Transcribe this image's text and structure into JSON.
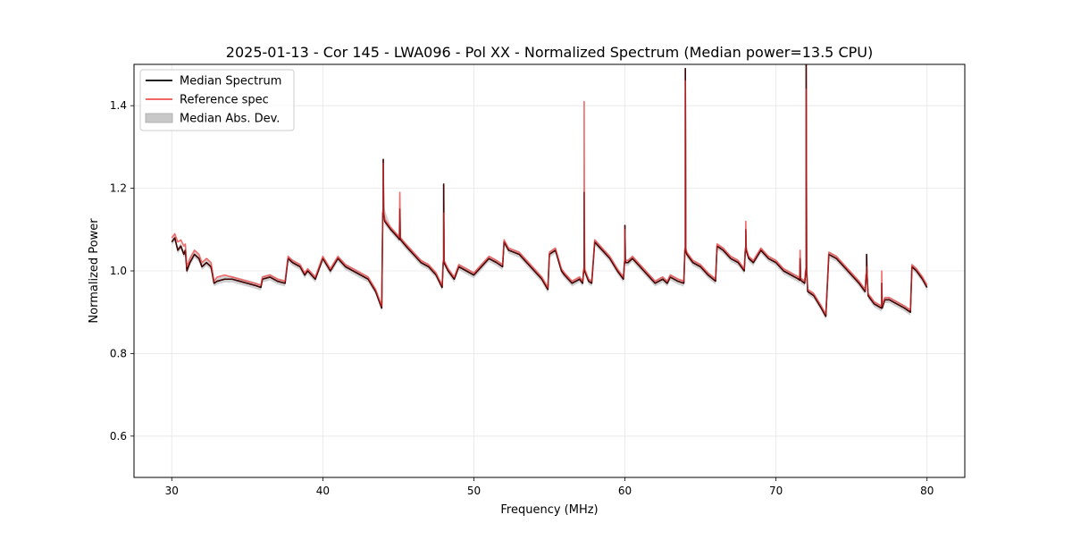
{
  "chart_data": {
    "type": "line",
    "title": "2025-01-13 - Cor 145 - LWA096 - Pol XX - Normalized Spectrum (Median power=13.5 CPU)",
    "xlabel": "Frequency (MHz)",
    "ylabel": "Normalized Power",
    "xlim": [
      27.5,
      82.5
    ],
    "ylim": [
      0.5,
      1.5
    ],
    "x_ticks": [
      30,
      40,
      50,
      60,
      70,
      80
    ],
    "y_ticks": [
      0.6,
      0.8,
      1.0,
      1.2,
      1.4
    ],
    "x_tick_labels": [
      "30",
      "40",
      "50",
      "60",
      "70",
      "80"
    ],
    "y_tick_labels": [
      "0.6",
      "0.8",
      "1.0",
      "1.2",
      "1.4"
    ],
    "grid": true,
    "legend_position": "upper-left",
    "legend": [
      {
        "label": "Median Spectrum",
        "kind": "line",
        "color": "#000000"
      },
      {
        "label": "Reference spec",
        "kind": "line",
        "color": "#f05050"
      },
      {
        "label": "Median Abs. Dev.",
        "kind": "patch",
        "color": "#c8c8c8"
      }
    ],
    "series": [
      {
        "name": "Median Spectrum",
        "color": "#000000",
        "x": [
          30.0,
          30.2,
          30.4,
          30.6,
          30.8,
          30.9,
          31.0,
          31.2,
          31.5,
          31.8,
          32.0,
          32.3,
          32.6,
          32.8,
          33.0,
          33.5,
          34.0,
          34.5,
          35.0,
          35.5,
          35.9,
          36.0,
          36.5,
          37.0,
          37.5,
          37.7,
          38.0,
          38.5,
          38.8,
          39.0,
          39.5,
          40.0,
          40.5,
          41.0,
          41.5,
          42.0,
          42.5,
          43.0,
          43.5,
          43.9,
          44.0,
          44.1,
          44.5,
          45.0,
          45.5,
          46.0,
          46.5,
          47.0,
          47.5,
          47.9,
          48.0,
          48.3,
          48.7,
          49.0,
          49.5,
          50.0,
          50.5,
          51.0,
          51.5,
          51.9,
          52.0,
          52.3,
          53.0,
          53.5,
          54.0,
          54.5,
          54.9,
          55.0,
          55.4,
          55.8,
          56.0,
          56.5,
          57.0,
          57.2,
          57.3,
          57.6,
          57.8,
          58.0,
          58.5,
          59.0,
          59.5,
          59.9,
          60.0,
          60.2,
          60.5,
          61.0,
          61.5,
          62.0,
          62.5,
          62.8,
          63.0,
          63.5,
          63.9,
          64.0,
          64.1,
          64.5,
          65.0,
          65.5,
          66.0,
          66.1,
          66.5,
          67.0,
          67.5,
          67.9,
          68.0,
          68.2,
          68.5,
          69.0,
          69.5,
          70.0,
          70.5,
          71.0,
          71.5,
          71.9,
          72.0,
          72.1,
          72.5,
          73.0,
          73.3,
          73.5,
          74.0,
          74.5,
          75.0,
          75.5,
          75.9,
          76.0,
          76.1,
          76.5,
          77.0,
          77.2,
          77.5,
          78.0,
          78.5,
          78.9,
          79.0,
          79.3,
          79.7,
          80.0
        ],
        "y": [
          1.07,
          1.08,
          1.05,
          1.06,
          1.04,
          1.05,
          1.0,
          1.02,
          1.04,
          1.03,
          1.01,
          1.02,
          1.01,
          0.97,
          0.975,
          0.98,
          0.98,
          0.975,
          0.97,
          0.965,
          0.96,
          0.98,
          0.985,
          0.975,
          0.97,
          1.03,
          1.02,
          1.01,
          0.99,
          1.0,
          0.98,
          1.03,
          1.0,
          1.03,
          1.01,
          1.0,
          0.99,
          0.98,
          0.95,
          0.91,
          1.14,
          1.12,
          1.1,
          1.08,
          1.06,
          1.04,
          1.02,
          1.01,
          0.99,
          0.96,
          1.02,
          1.0,
          0.98,
          1.01,
          1.0,
          0.99,
          1.01,
          1.03,
          1.02,
          1.01,
          1.07,
          1.05,
          1.04,
          1.02,
          1.0,
          0.98,
          0.955,
          1.04,
          1.05,
          1.0,
          0.99,
          0.97,
          0.98,
          0.97,
          1.0,
          0.975,
          0.97,
          1.07,
          1.05,
          1.03,
          1.0,
          0.98,
          1.02,
          1.02,
          1.03,
          1.01,
          0.99,
          0.97,
          0.98,
          0.97,
          0.985,
          0.975,
          0.97,
          1.05,
          1.04,
          1.02,
          1.01,
          0.99,
          0.975,
          1.06,
          1.05,
          1.03,
          1.02,
          1.0,
          1.05,
          1.03,
          1.02,
          1.05,
          1.03,
          1.02,
          1.0,
          0.99,
          0.98,
          0.97,
          1.0,
          0.95,
          0.94,
          0.91,
          0.89,
          1.04,
          1.03,
          1.01,
          0.99,
          0.97,
          0.95,
          0.99,
          0.94,
          0.92,
          0.91,
          0.93,
          0.93,
          0.92,
          0.91,
          0.9,
          1.01,
          1.0,
          0.98,
          0.96
        ]
      },
      {
        "name": "Reference spec",
        "color": "#f05050",
        "x": [
          30.0,
          30.2,
          30.4,
          30.6,
          30.8,
          30.9,
          31.0,
          31.2,
          31.5,
          31.8,
          32.0,
          32.3,
          32.6,
          32.8,
          33.0,
          33.5,
          34.0,
          34.5,
          35.0,
          35.5,
          35.9,
          36.0,
          36.5,
          37.0,
          37.5,
          37.7,
          38.0,
          38.5,
          38.8,
          39.0,
          39.5,
          40.0,
          40.5,
          41.0,
          41.5,
          42.0,
          42.5,
          43.0,
          43.5,
          43.9,
          44.0,
          44.1,
          44.5,
          45.0,
          45.5,
          46.0,
          46.5,
          47.0,
          47.5,
          47.9,
          48.0,
          48.3,
          48.7,
          49.0,
          49.5,
          50.0,
          50.5,
          51.0,
          51.5,
          51.9,
          52.0,
          52.3,
          53.0,
          53.5,
          54.0,
          54.5,
          54.9,
          55.0,
          55.4,
          55.8,
          56.0,
          56.5,
          57.0,
          57.2,
          57.3,
          57.6,
          57.8,
          58.0,
          58.5,
          59.0,
          59.5,
          59.9,
          60.0,
          60.2,
          60.5,
          61.0,
          61.5,
          62.0,
          62.5,
          62.8,
          63.0,
          63.5,
          63.9,
          64.0,
          64.1,
          64.5,
          65.0,
          65.5,
          66.0,
          66.1,
          66.5,
          67.0,
          67.5,
          67.9,
          68.0,
          68.2,
          68.5,
          69.0,
          69.5,
          70.0,
          70.5,
          71.0,
          71.5,
          71.9,
          72.0,
          72.1,
          72.5,
          73.0,
          73.3,
          73.5,
          74.0,
          74.5,
          75.0,
          75.5,
          75.9,
          76.0,
          76.1,
          76.5,
          77.0,
          77.2,
          77.5,
          78.0,
          78.5,
          78.9,
          79.0,
          79.3,
          79.7,
          80.0
        ],
        "y": [
          1.08,
          1.09,
          1.07,
          1.075,
          1.06,
          1.065,
          1.01,
          1.03,
          1.05,
          1.04,
          1.02,
          1.03,
          1.02,
          0.975,
          0.985,
          0.99,
          0.985,
          0.98,
          0.975,
          0.97,
          0.965,
          0.985,
          0.99,
          0.98,
          0.975,
          1.035,
          1.025,
          1.015,
          0.995,
          1.005,
          0.985,
          1.035,
          1.005,
          1.035,
          1.015,
          1.005,
          0.995,
          0.985,
          0.955,
          0.915,
          1.145,
          1.125,
          1.105,
          1.085,
          1.065,
          1.045,
          1.025,
          1.015,
          0.995,
          0.965,
          1.025,
          1.005,
          0.985,
          1.015,
          1.005,
          0.995,
          1.015,
          1.035,
          1.025,
          1.015,
          1.075,
          1.055,
          1.045,
          1.025,
          1.005,
          0.985,
          0.96,
          1.045,
          1.055,
          1.005,
          0.995,
          0.975,
          0.985,
          0.975,
          1.005,
          0.98,
          0.975,
          1.075,
          1.055,
          1.035,
          1.005,
          0.985,
          1.025,
          1.025,
          1.035,
          1.015,
          0.995,
          0.975,
          0.985,
          0.975,
          0.99,
          0.98,
          0.975,
          1.055,
          1.045,
          1.025,
          1.015,
          0.995,
          0.98,
          1.065,
          1.055,
          1.035,
          1.025,
          1.005,
          1.055,
          1.035,
          1.025,
          1.055,
          1.035,
          1.025,
          1.005,
          0.995,
          0.985,
          0.975,
          1.005,
          0.955,
          0.945,
          0.915,
          0.895,
          1.045,
          1.035,
          1.015,
          0.995,
          0.975,
          0.955,
          0.995,
          0.945,
          0.925,
          0.915,
          0.935,
          0.935,
          0.925,
          0.915,
          0.905,
          1.015,
          1.005,
          0.985,
          0.965
        ]
      }
    ],
    "spikes": [
      {
        "x": 44.0,
        "median_peak": 1.27,
        "reference_peak": 1.26
      },
      {
        "x": 45.1,
        "median_peak": 1.15,
        "reference_peak": 1.19
      },
      {
        "x": 48.0,
        "median_peak": 1.21,
        "reference_peak": 1.14
      },
      {
        "x": 57.3,
        "median_peak": 1.19,
        "reference_peak": 1.41
      },
      {
        "x": 60.0,
        "median_peak": 1.11,
        "reference_peak": 1.1
      },
      {
        "x": 64.0,
        "median_peak": 1.49,
        "reference_peak": 1.46
      },
      {
        "x": 68.0,
        "median_peak": 1.1,
        "reference_peak": 1.12
      },
      {
        "x": 71.6,
        "median_peak": 1.03,
        "reference_peak": 1.05
      },
      {
        "x": 72.0,
        "median_peak": 1.5,
        "reference_peak": 1.44
      },
      {
        "x": 76.0,
        "median_peak": 1.04,
        "reference_peak": 1.01
      },
      {
        "x": 77.0,
        "median_peak": 0.97,
        "reference_peak": 1.0
      }
    ],
    "mad_band": {
      "name": "Median Abs. Dev.",
      "color": "#c8c8c8",
      "half_width": 0.008
    }
  }
}
